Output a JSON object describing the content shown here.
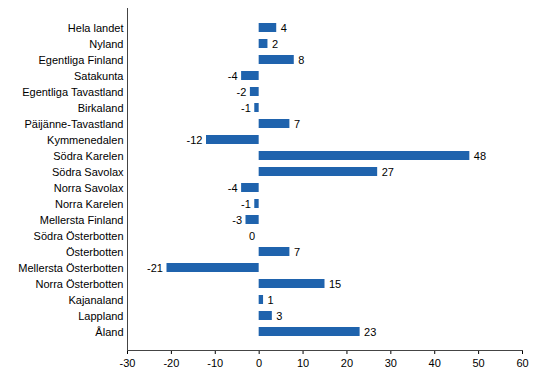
{
  "chart_data": {
    "type": "bar",
    "orientation": "horizontal",
    "categories": [
      "Hela landet",
      "Nyland",
      "Egentliga Finland",
      "Satakunta",
      "Egentliga Tavastland",
      "Birkaland",
      "Päijänne-Tavastland",
      "Kymmenedalen",
      "Södra Karelen",
      "Södra Savolax",
      "Norra Savolax",
      "Norra Karelen",
      "Mellersta Finland",
      "Södra Österbotten",
      "Österbotten",
      "Mellersta Österbotten",
      "Norra Österbotten",
      "Kajanaland",
      "Lappland",
      "Åland"
    ],
    "values": [
      4,
      2,
      8,
      -4,
      -2,
      -1,
      7,
      -12,
      48,
      27,
      -4,
      -1,
      -3,
      0,
      7,
      -21,
      15,
      1,
      3,
      23
    ],
    "color": "#1f63ad",
    "xlim": [
      -30,
      60
    ],
    "xticks": [
      -30,
      -20,
      -10,
      0,
      10,
      20,
      30,
      40,
      50,
      60
    ],
    "grid": false,
    "data_labels": true
  }
}
